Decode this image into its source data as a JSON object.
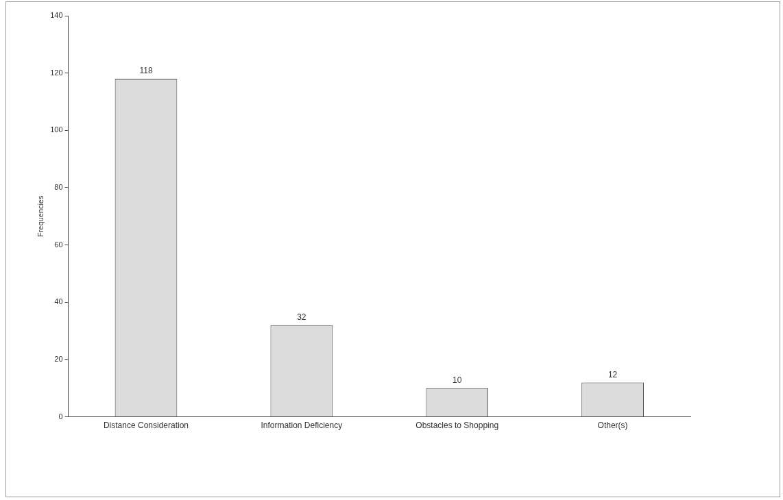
{
  "chart_data": {
    "type": "bar",
    "ylabel": "Frequencies",
    "categories": [
      "Distance Consideration",
      "Information Deficiency",
      "Obstacles to Shopping",
      "Other(s)"
    ],
    "values": [
      118,
      32,
      10,
      12
    ],
    "color": "#dcdcdc",
    "ylim": [
      0,
      140
    ],
    "yticks": [
      0,
      20,
      40,
      60,
      80,
      100,
      120,
      140
    ],
    "grid": false,
    "data_labels": true,
    "legend": false
  }
}
